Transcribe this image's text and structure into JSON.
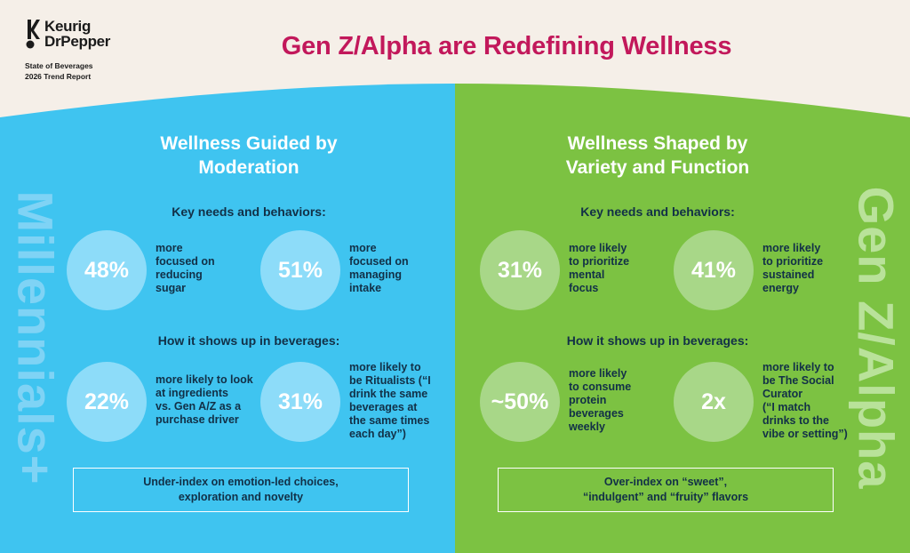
{
  "header": {
    "brand_line1": "Keurig",
    "brand_line2": "DrPepper",
    "report_line1": "State of Beverages",
    "report_line2": "2026 Trend Report",
    "title": "Gen Z/Alpha are Redefining Wellness"
  },
  "colors": {
    "blue_panel": "#3fc4f0",
    "green_panel": "#7cc242",
    "title": "#c2185b",
    "background": "#f5efe8",
    "text_dark": "#123047"
  },
  "left": {
    "side_label": "Millennials+",
    "title_line1": "Wellness Guided by",
    "title_line2": "Moderation",
    "needs_heading": "Key needs and behaviors:",
    "stats": [
      {
        "value": "48%",
        "text": "more\nfocused on\nreducing\nsugar"
      },
      {
        "value": "51%",
        "text": "more\nfocused on\nmanaging\nintake"
      }
    ],
    "shows_heading": "How it shows up in beverages:",
    "stats2": [
      {
        "value": "22%",
        "text": "more likely to look\nat ingredients\nvs. Gen A/Z as a\npurchase driver"
      },
      {
        "value": "31%",
        "text": "more likely to\nbe Ritualists (“I\ndrink the same\nbeverages at\nthe same times\neach day”)"
      }
    ],
    "box_line1": "Under-index on emotion-led choices,",
    "box_line2": "exploration and novelty"
  },
  "right": {
    "side_label": "Gen Z/Alpha",
    "title_line1": "Wellness Shaped by",
    "title_line2": "Variety and Function",
    "needs_heading": "Key needs and behaviors:",
    "stats": [
      {
        "value": "31%",
        "text": "more likely\nto prioritize\nmental\nfocus"
      },
      {
        "value": "41%",
        "text": "more likely\nto prioritize\nsustained\nenergy"
      }
    ],
    "shows_heading": "How it shows up in beverages:",
    "stats2": [
      {
        "value": "~50%",
        "text": "more likely\nto consume\nprotein\nbeverages\nweekly"
      },
      {
        "value": "2x",
        "text": "more likely to\nbe The Social\nCurator\n(“I match\ndrinks to the\nvibe or setting”)"
      }
    ],
    "box_line1": "Over-index on “sweet”,",
    "box_line2": "“indulgent” and “fruity” flavors"
  }
}
